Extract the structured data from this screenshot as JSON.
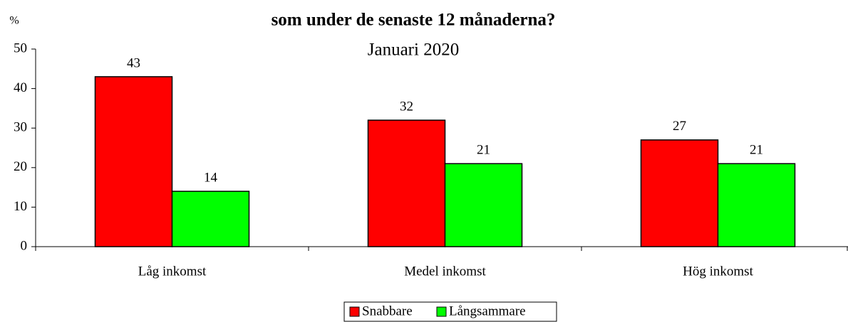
{
  "chart_data": {
    "type": "bar",
    "title": "som under de senaste 12 månaderna?",
    "subtitle": "Januari 2020",
    "y_label": "%",
    "categories": [
      "Låg inkomst",
      "Medel inkomst",
      "Hög inkomst"
    ],
    "series": [
      {
        "name": "Snabbare",
        "color": "#ff0000",
        "values": [
          43,
          32,
          27
        ]
      },
      {
        "name": "Långsammare",
        "color": "#00ff00",
        "values": [
          14,
          21,
          21
        ]
      }
    ],
    "ylim": [
      0,
      50
    ],
    "yticks": [
      0,
      10,
      20,
      30,
      40,
      50
    ],
    "grid": false,
    "legend": "bottom"
  }
}
